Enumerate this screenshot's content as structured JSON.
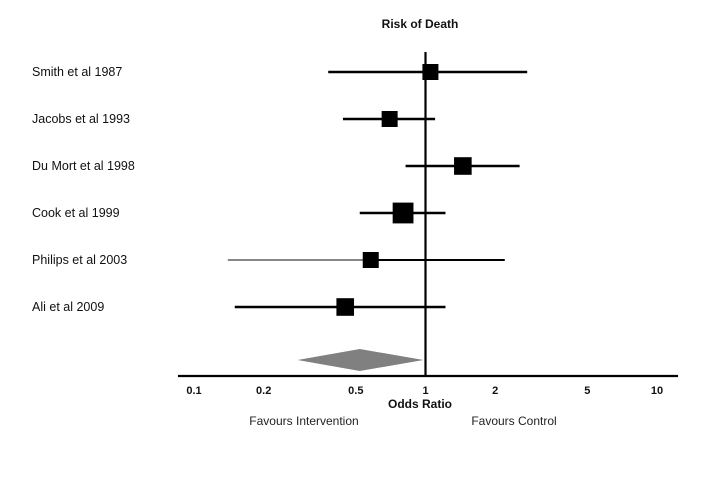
{
  "chart_data": {
    "type": "forest",
    "title": "Risk of Death",
    "xlabel": "Odds Ratio",
    "x_scale": "log",
    "xlim": [
      0.1,
      10
    ],
    "ticks": [
      {
        "value": 0.1,
        "label": "0.1"
      },
      {
        "value": 0.2,
        "label": "0.2"
      },
      {
        "value": 0.5,
        "label": "0.5"
      },
      {
        "value": 1,
        "label": "1"
      },
      {
        "value": 2,
        "label": "2"
      },
      {
        "value": 5,
        "label": "5"
      },
      {
        "value": 10,
        "label": "10"
      }
    ],
    "reference_line": 1,
    "studies": [
      {
        "label": "Smith et al 1987",
        "or": 1.05,
        "lower": 0.38,
        "upper": 2.75,
        "weight": 1.0,
        "color": "#000000"
      },
      {
        "label": "Jacobs et al 1993",
        "or": 0.7,
        "lower": 0.44,
        "upper": 1.1,
        "weight": 1.0,
        "color": "#000000"
      },
      {
        "label": "Du Mort et al 1998",
        "or": 1.45,
        "lower": 0.82,
        "upper": 2.55,
        "weight": 1.1,
        "color": "#000000"
      },
      {
        "label": "Cook et al 1999",
        "or": 0.8,
        "lower": 0.52,
        "upper": 1.22,
        "weight": 1.3,
        "color": "#000000"
      },
      {
        "label": "Philips et al 2003",
        "or": 0.58,
        "lower": 0.14,
        "upper": 2.2,
        "weight": 1.0,
        "color": "#000000",
        "lower_segment_color": "#888888"
      },
      {
        "label": "Ali et al 2009",
        "or": 0.45,
        "lower": 0.15,
        "upper": 1.22,
        "weight": 1.1,
        "color": "#000000"
      }
    ],
    "pooled": {
      "or": 0.52,
      "lower": 0.28,
      "upper": 0.98,
      "color": "#808080"
    },
    "favours_left": "Favours Intervention",
    "favours_right": "Favours Control"
  }
}
